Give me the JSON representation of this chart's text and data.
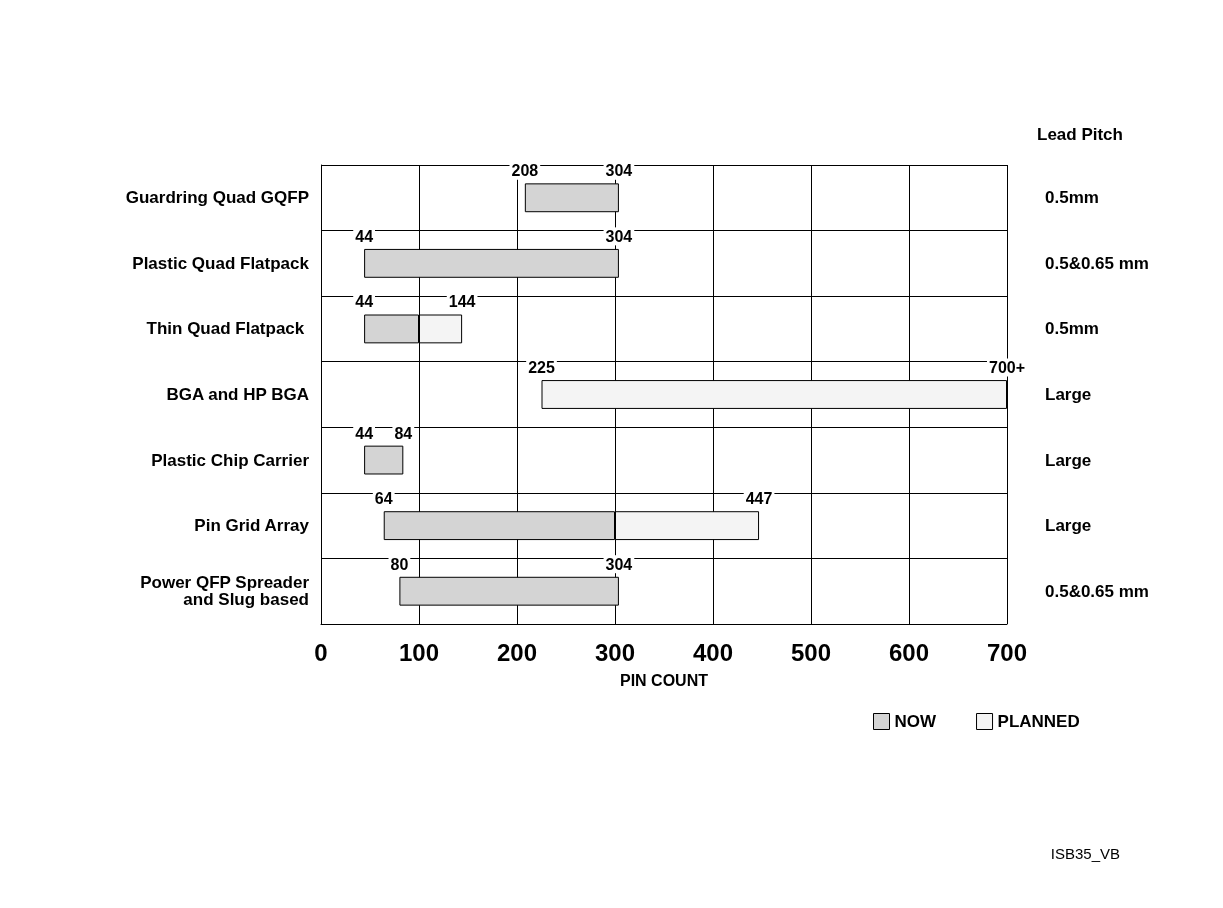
{
  "chart_data": {
    "type": "bar",
    "orientation": "horizontal",
    "categories": [
      "Guardring Quad GQFP",
      "Plastic Quad Flatpack",
      "Thin Quad Flatpack ",
      "BGA and HP BGA",
      "Plastic Chip Carrier",
      "Pin Grid Array",
      "Power QFP Spreader\n and Slug based"
    ],
    "y2label": "Lead Pitch",
    "y2_categories": [
      "0.5mm",
      "0.5&0.65 mm",
      "0.5mm",
      "Large",
      "Large",
      "Large",
      "0.5&0.65 mm"
    ],
    "series": [
      {
        "name": "NOW",
        "color": "#d4d4d4",
        "base": [
          208,
          44,
          44,
          null,
          44,
          64,
          80
        ],
        "values": [
          96,
          260,
          56,
          null,
          40,
          236,
          224
        ]
      },
      {
        "name": "PLANNED",
        "color": "#f4f4f4",
        "base": [
          null,
          null,
          100,
          225,
          null,
          300,
          null
        ],
        "values": [
          null,
          null,
          44,
          475,
          null,
          147,
          null
        ]
      }
    ],
    "xlabel": "PIN COUNT",
    "xlim": [
      0,
      700
    ],
    "xticks": [
      0,
      100,
      200,
      300,
      400,
      500,
      600,
      700
    ],
    "grid": true,
    "legend": "bottom right",
    "annotations": [
      {
        "text": "208",
        "x": 208,
        "y": "Guardring Quad GQFP"
      },
      {
        "text": "304",
        "x": 304,
        "y": "Guardring Quad GQFP"
      },
      {
        "text": "44",
        "x": 44,
        "y": "Plastic Quad Flatpack"
      },
      {
        "text": "304",
        "x": 304,
        "y": "Plastic Quad Flatpack"
      },
      {
        "text": "44",
        "x": 44,
        "y": "Thin Quad Flatpack "
      },
      {
        "text": "144",
        "x": 144,
        "y": "Thin Quad Flatpack "
      },
      {
        "text": "225",
        "x": 225,
        "y": "BGA and HP BGA"
      },
      {
        "text": "700+",
        "x": 700,
        "y": "BGA and HP BGA"
      },
      {
        "text": "44",
        "x": 44,
        "y": "Plastic Chip Carrier"
      },
      {
        "text": "84",
        "x": 84,
        "y": "Plastic Chip Carrier"
      },
      {
        "text": "64",
        "x": 64,
        "y": "Pin Grid Array"
      },
      {
        "text": "447",
        "x": 447,
        "y": "Pin Grid Array"
      },
      {
        "text": "80",
        "x": 80,
        "y": "Power QFP Spreader\n and Slug based"
      },
      {
        "text": "304",
        "x": 304,
        "y": "Power QFP Spreader\n and Slug based"
      },
      "ISB35_VB"
    ]
  }
}
